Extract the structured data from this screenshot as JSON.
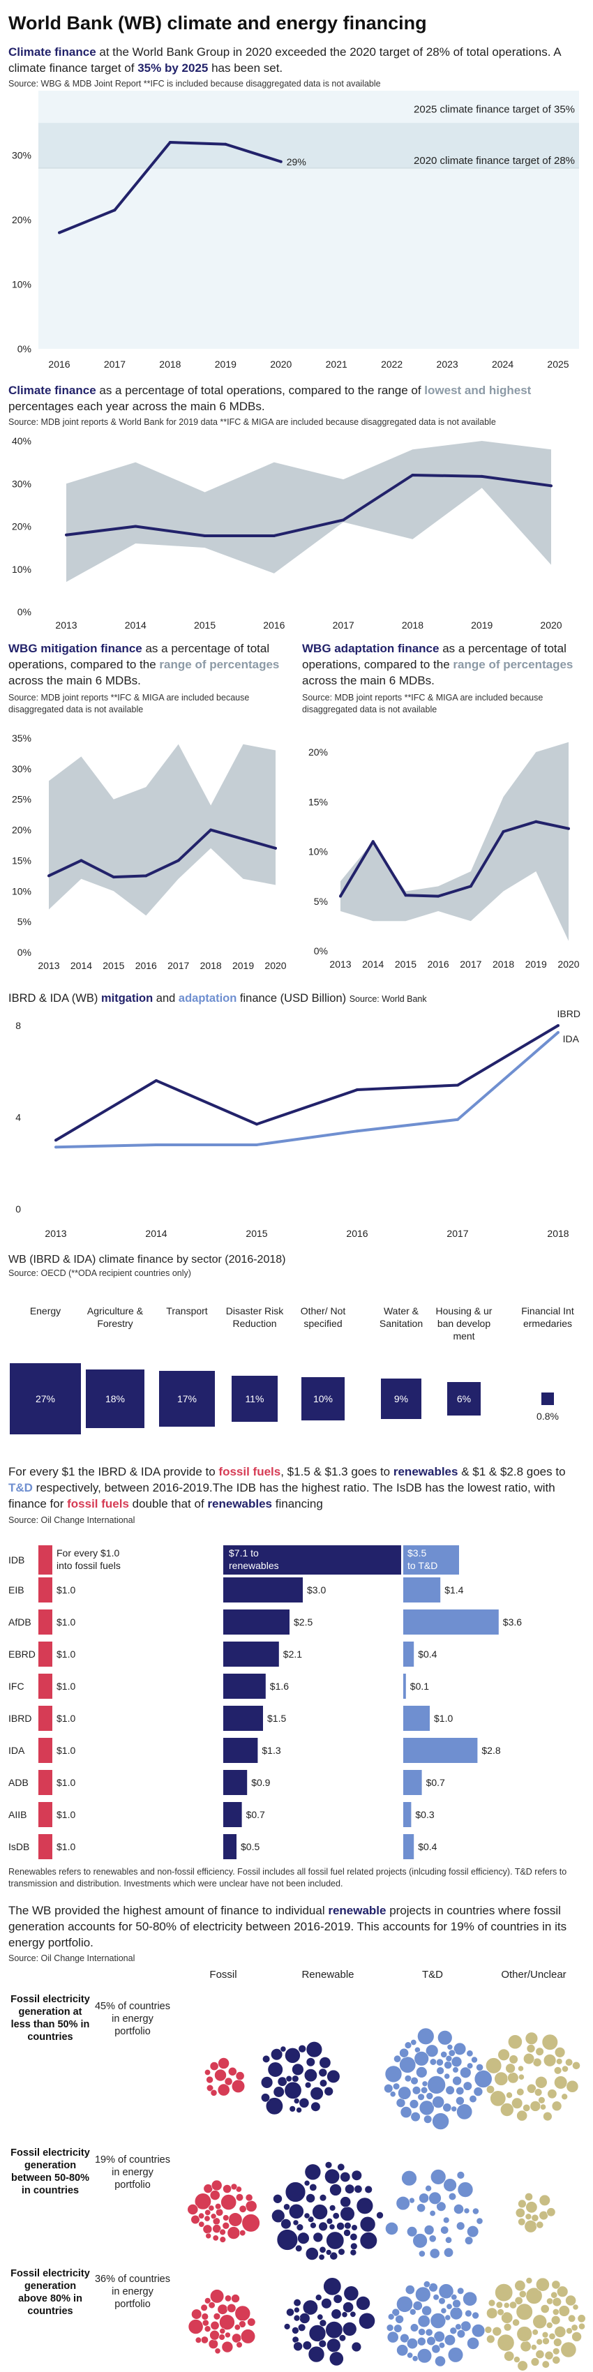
{
  "title": "World Bank (WB) climate and energy financing",
  "intro": {
    "p1": "Climate finance",
    "p2": " at the World Bank Group in 2020 exceeded the 2020 target of 28% of total operations. A climate finance target of ",
    "p3": "35% by 2025",
    "p4": " has been set.",
    "source": "Source: WBG & MDB Joint Report **IFC is included because disaggregated data is not available"
  },
  "chart1": {
    "type": "line",
    "x": [
      2016,
      2017,
      2018,
      2019,
      2020
    ],
    "values": [
      18,
      21.5,
      32,
      31.7,
      29
    ],
    "ylim": [
      0,
      40
    ],
    "yticks": [
      "0%",
      "10%",
      "20%",
      "30%"
    ],
    "xticks": [
      "2016",
      "2017",
      "2018",
      "2019",
      "2020",
      "2021",
      "2022",
      "2023",
      "2024",
      "2025"
    ],
    "end_label": "29%",
    "target35": "2025 climate finance target of 35%",
    "target28": "2020 climate finance target of 28%",
    "color": "#22226a",
    "band_color": "#dce8ee"
  },
  "sec2": {
    "p1": "Climate finance",
    "p2": " as a percentage of total operations, compared to the range of ",
    "p3": "lowest and highest",
    "p4": " percentages each year across the main 6 MDBs.",
    "source": "Source: MDB joint reports & World Bank for 2019 data **IFC & MIGA are included because disaggregated data is not available"
  },
  "chart2": {
    "type": "area",
    "x": [
      "2013",
      "2014",
      "2015",
      "2016",
      "2017",
      "2018",
      "2019",
      "2020"
    ],
    "wb": [
      18,
      20,
      17.8,
      17.8,
      21.5,
      32,
      31.7,
      29.5
    ],
    "low": [
      7,
      16,
      15,
      9,
      21,
      17,
      29,
      11
    ],
    "high": [
      30,
      35,
      28,
      35,
      31,
      38,
      40,
      38
    ],
    "ylim": [
      0,
      40
    ],
    "yticks": [
      "0%",
      "10%",
      "20%",
      "30%",
      "40%"
    ],
    "band_color": "#c5ced4"
  },
  "sec3a": {
    "p1": "WBG mitigation finance",
    "p2": " as a percentage of total operations, compared to the ",
    "p3": "range of percentages",
    "p4": " across the main 6 MDBs.",
    "source": "Source: MDB joint reports **IFC & MIGA are included because disaggregated data is not available"
  },
  "sec3b": {
    "p1": "WBG adaptation finance",
    "p2": " as a percentage of total operations, compared to the ",
    "p3": "range of percentages",
    "p4": " across the main 6 MDBs.",
    "source": "Source: MDB joint reports **IFC & MIGA are included because disaggregated data is not available"
  },
  "chart3a": {
    "type": "area",
    "x": [
      "2013",
      "2014",
      "2015",
      "2016",
      "2017",
      "2018",
      "2019",
      "2020"
    ],
    "wb": [
      12.5,
      15,
      12.3,
      12.5,
      15,
      20,
      18.5,
      17
    ],
    "low": [
      7,
      12,
      10,
      6,
      12,
      17,
      12,
      11
    ],
    "high": [
      28,
      32,
      25,
      27,
      34,
      24,
      34,
      33
    ],
    "ylim": [
      0,
      35
    ],
    "yticks": [
      "0%",
      "5%",
      "10%",
      "15%",
      "20%",
      "25%",
      "30%",
      "35%"
    ]
  },
  "chart3b": {
    "type": "area",
    "x": [
      "2013",
      "2014",
      "2015",
      "2016",
      "2017",
      "2018",
      "2019",
      "2020"
    ],
    "wb": [
      5.5,
      11,
      5.6,
      5.5,
      6.5,
      12,
      13,
      12.3
    ],
    "low": [
      4,
      3,
      3,
      4,
      3,
      6,
      8,
      1
    ],
    "high": [
      7,
      11,
      6,
      6.5,
      8,
      15.5,
      20,
      21
    ],
    "ylim": [
      0,
      20
    ],
    "yticks": [
      "0%",
      "5%",
      "10%",
      "15%",
      "20%"
    ]
  },
  "sec4": {
    "p1": "IBRD & IDA (WB) ",
    "p2": "mitgation",
    "p3": " and ",
    "p4": "adaptation",
    "p5": " finance (USD Billion) ",
    "source": "Source: World Bank"
  },
  "chart4": {
    "type": "line",
    "x": [
      "2013",
      "2014",
      "2015",
      "2016",
      "2017",
      "2018"
    ],
    "series": [
      {
        "name": "IBRD",
        "values": [
          3.0,
          5.6,
          3.7,
          5.2,
          5.4,
          8.0
        ],
        "color": "#22226a"
      },
      {
        "name": "IDA",
        "values": [
          2.7,
          2.8,
          2.8,
          3.4,
          3.9,
          7.7
        ],
        "color": "#6f8fd0"
      }
    ],
    "ylim": [
      0,
      8
    ],
    "yticks": [
      "0",
      "4",
      "8"
    ]
  },
  "sec5": {
    "title": "WB (IBRD & IDA) climate finance by sector  (2016-2018)",
    "source": "Source: OECD (**ODA recipient countries only)",
    "categories": [
      {
        "name": "Energy",
        "value": 27,
        "label": "27%"
      },
      {
        "name": "Agriculture & Forestry",
        "value": 18,
        "label": "18%"
      },
      {
        "name": "Transport",
        "value": 17,
        "label": "17%"
      },
      {
        "name": "Disaster Risk Reduction",
        "value": 11,
        "label": "11%"
      },
      {
        "name": "Other/ Not specified",
        "value": 10,
        "label": "10%"
      },
      {
        "name": "Water & Sanitation",
        "value": 9,
        "label": "9%"
      },
      {
        "name": "Housing & ur ban develop ment",
        "value": 6,
        "label": "6%"
      },
      {
        "name": "Financial Int ermedaries",
        "value": 0.8,
        "label": "0.8%"
      }
    ]
  },
  "sec6": {
    "t1": "For every $1 the IBRD & IDA provide to ",
    "t2": "fossil fuels",
    "t3": ", $1.5 & $1.3 goes to ",
    "t4": "renewables",
    "t5": " & $1 & $2.8 goes to ",
    "t6": "T&D",
    "t7": " respectively, between 2016-2019.The IDB has the highest ratio. The IsDB has the lowest ratio, with finance for ",
    "t8": "fossil fuels",
    "t9": " double that of ",
    "t10": "renewables",
    "t11": " financing",
    "source": "Source: Oil Change International",
    "head_fossil": "For every $1.0 into fossil fuels",
    "head_renew": "$7.1 to renewables",
    "head_td": "$3.5 to T&D",
    "note": "Renewables refers to renewables and non-fossil efficiency. Fossil includes all fossil fuel related projects (inlcuding fossil efficiency). T&D refers to transmission and distribution. Investments which were unclear have not been included.",
    "colors": {
      "fossil": "#d63c55",
      "renew": "#22226a",
      "td": "#6f8fd0"
    }
  },
  "chart6": {
    "type": "bar",
    "categories": [
      "IDB",
      "EIB",
      "AfDB",
      "EBRD",
      "IFC",
      "IBRD",
      "IDA",
      "ADB",
      "AIIB",
      "IsDB"
    ],
    "fossil": [
      1,
      1,
      1,
      1,
      1,
      1,
      1,
      1,
      1,
      1
    ],
    "fossil_labels": [
      "",
      "$1.0",
      "$1.0",
      "$1.0",
      "$1.0",
      "$1.0",
      "$1.0",
      "$1.0",
      "$1.0",
      "$1.0"
    ],
    "renew": [
      7.1,
      3.0,
      2.5,
      2.1,
      1.6,
      1.5,
      1.3,
      0.9,
      0.7,
      0.5
    ],
    "renew_labels": [
      "",
      "$3.0",
      "$2.5",
      "$2.1",
      "$1.6",
      "$1.5",
      "$1.3",
      "$0.9",
      "$0.7",
      "$0.5"
    ],
    "td": [
      3.5,
      1.4,
      3.6,
      0.4,
      0.1,
      1.0,
      2.8,
      0.7,
      0.3,
      0.4
    ],
    "td_labels": [
      "",
      "$1.4",
      "$3.6",
      "$0.4",
      "$0.1",
      "$1.0",
      "$2.8",
      "$0.7",
      "$0.3",
      "$0.4"
    ]
  },
  "sec7": {
    "text": "The WB provided the highest amount of finance to individual ",
    "bold": "renewable",
    "text2": " projects in countries where fossil generation accounts for 50-80% of electricity between 2016-2019. This accounts for 19% of countries in its energy portfolio.",
    "source": "Source: Oil Change International",
    "cols": [
      "Fossil",
      "Renewable",
      "T&D",
      "Other/Unclear"
    ],
    "rows": [
      {
        "label": "Fossil electricity generation at less than 50% in countries",
        "pct": "45% of countries in energy portfolio"
      },
      {
        "label": "Fossil electricity generation between 50-80% in countries",
        "pct": "19% of countries in energy portfolio"
      },
      {
        "label": "Fossil electricity generation above 80% in countries",
        "pct": "36% of countries in energy portfolio"
      }
    ],
    "colors": [
      "#d63c55",
      "#22226a",
      "#6f8fd0",
      "#c8bd84"
    ]
  }
}
